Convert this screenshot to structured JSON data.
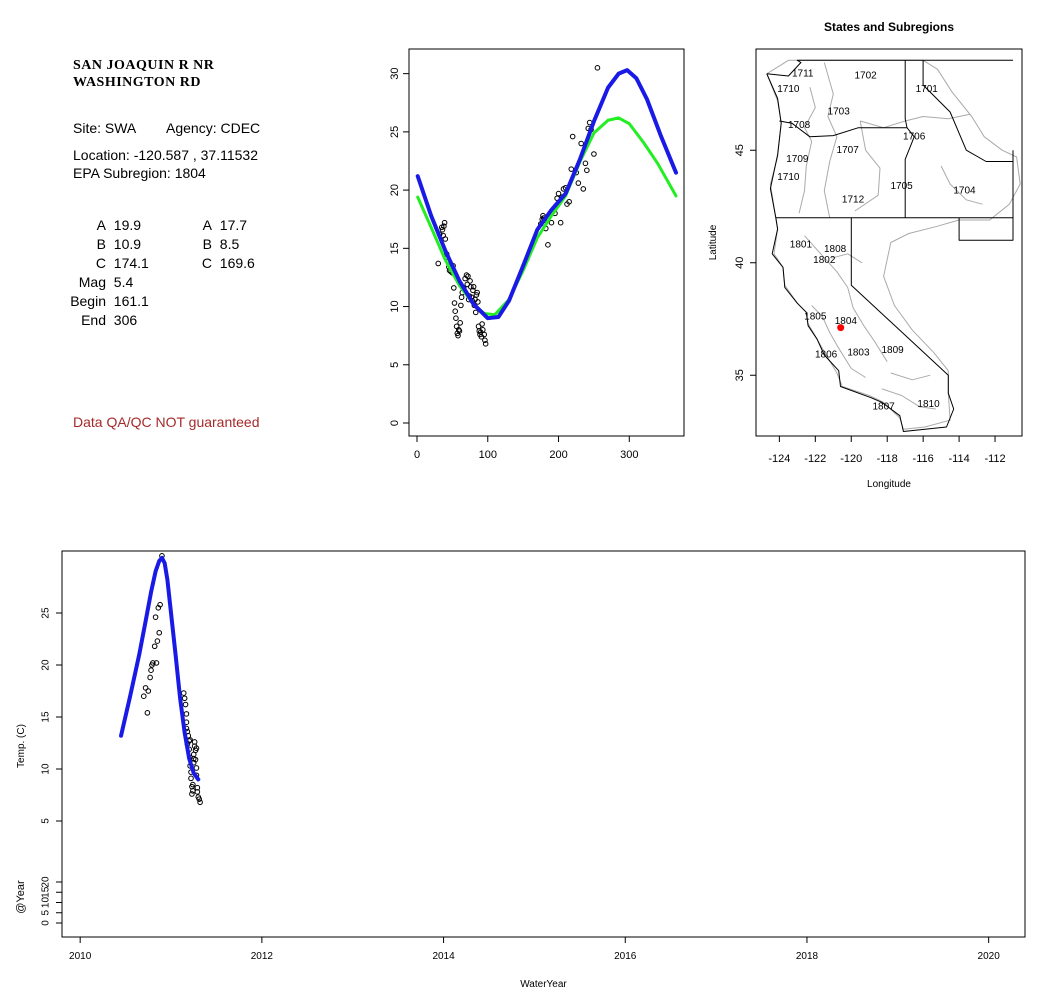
{
  "station": {
    "name_line1": "SAN JOAQUIN R NR",
    "name_line2": "WASHINGTON RD",
    "site_label": "Site: SWA",
    "agency_label": "Agency: CDEC",
    "location_label": "Location: -120.587 , 37.11532",
    "subregion_label": "EPA Subregion: 1804"
  },
  "params_left": [
    {
      "label": "A",
      "value": "19.9"
    },
    {
      "label": "B",
      "value": "10.9"
    },
    {
      "label": "C",
      "value": "174.1"
    },
    {
      "label": "Mag",
      "value": "5.4"
    },
    {
      "label": "Begin",
      "value": "161.1"
    },
    {
      "label": "End",
      "value": "306"
    }
  ],
  "params_right": [
    {
      "label": "A",
      "value": "17.7"
    },
    {
      "label": "B",
      "value": "8.5"
    },
    {
      "label": "C",
      "value": "169.6"
    }
  ],
  "qa_note": "Data QA/QC NOT guaranteed",
  "colors": {
    "green": "#22ee22",
    "blue": "#1a1ae6",
    "point": "#000000",
    "qa": "#a52a2a",
    "site_marker": "#ff0000",
    "map_boundary": "#aaaaaa"
  },
  "chart_data": [
    {
      "id": "seasonal",
      "type": "scatter",
      "title": "",
      "xlabel": "",
      "ylabel": "",
      "xlim": [
        0,
        366
      ],
      "ylim": [
        0,
        31
      ],
      "xticks": [
        0,
        100,
        200,
        300
      ],
      "yticks": [
        0,
        5,
        10,
        15,
        20,
        25,
        30
      ],
      "points": [
        [
          30,
          13.7
        ],
        [
          32,
          16.2
        ],
        [
          35,
          16.8
        ],
        [
          36,
          16.6
        ],
        [
          37,
          16.1
        ],
        [
          38,
          16.9
        ],
        [
          39,
          17.2
        ],
        [
          40,
          15.8
        ],
        [
          42,
          14.5
        ],
        [
          44,
          13.9
        ],
        [
          45,
          13.4
        ],
        [
          46,
          13.1
        ],
        [
          47,
          13.6
        ],
        [
          48,
          13.0
        ],
        [
          50,
          12.9
        ],
        [
          51,
          13.5
        ],
        [
          52,
          11.6
        ],
        [
          53,
          10.3
        ],
        [
          54,
          9.6
        ],
        [
          55,
          9.0
        ],
        [
          56,
          8.3
        ],
        [
          57,
          7.7
        ],
        [
          58,
          7.5
        ],
        [
          59,
          8.0
        ],
        [
          60,
          7.9
        ],
        [
          61,
          8.6
        ],
        [
          62,
          10.1
        ],
        [
          63,
          10.8
        ],
        [
          64,
          11.2
        ],
        [
          66,
          11.6
        ],
        [
          68,
          12.4
        ],
        [
          70,
          12.7
        ],
        [
          71,
          11.9
        ],
        [
          72,
          12.6
        ],
        [
          73,
          10.6
        ],
        [
          74,
          10.9
        ],
        [
          75,
          12.2
        ],
        [
          76,
          11.7
        ],
        [
          77,
          10.8
        ],
        [
          78,
          10.5
        ],
        [
          79,
          11.4
        ],
        [
          80,
          11.7
        ],
        [
          81,
          10.1
        ],
        [
          82,
          10.6
        ],
        [
          83,
          9.5
        ],
        [
          84,
          11.0
        ],
        [
          85,
          11.2
        ],
        [
          86,
          10.4
        ],
        [
          87,
          8.3
        ],
        [
          88,
          7.9
        ],
        [
          89,
          7.6
        ],
        [
          90,
          7.8
        ],
        [
          91,
          7.4
        ],
        [
          92,
          8.5
        ],
        [
          93,
          8.0
        ],
        [
          95,
          7.6
        ],
        [
          96,
          7.1
        ],
        [
          97,
          6.8
        ],
        [
          175,
          17.1
        ],
        [
          177,
          17.5
        ],
        [
          178,
          17.8
        ],
        [
          179,
          17.6
        ],
        [
          180,
          17.4
        ],
        [
          182,
          16.7
        ],
        [
          185,
          15.3
        ],
        [
          190,
          17.2
        ],
        [
          195,
          18.0
        ],
        [
          198,
          19.3
        ],
        [
          200,
          19.7
        ],
        [
          203,
          17.2
        ],
        [
          205,
          19.4
        ],
        [
          207,
          20.1
        ],
        [
          210,
          20.2
        ],
        [
          212,
          18.8
        ],
        [
          215,
          19.0
        ],
        [
          218,
          21.8
        ],
        [
          220,
          24.6
        ],
        [
          225,
          21.5
        ],
        [
          228,
          20.6
        ],
        [
          232,
          24.0
        ],
        [
          235,
          20.1
        ],
        [
          238,
          22.3
        ],
        [
          240,
          21.7
        ],
        [
          242,
          25.3
        ],
        [
          244,
          25.8
        ],
        [
          246,
          25.2
        ],
        [
          250,
          23.1
        ],
        [
          255,
          30.5
        ]
      ],
      "series": [
        {
          "name": "",
          "color": "#22ee22",
          "x": [
            1,
            20,
            40,
            60,
            80,
            95,
            110,
            130,
            150,
            170,
            190,
            210,
            230,
            250,
            270,
            285,
            300,
            320,
            340,
            366
          ],
          "y": [
            19.4,
            16.8,
            14.0,
            11.8,
            10.2,
            9.4,
            9.3,
            10.6,
            13.1,
            15.9,
            17.8,
            19.5,
            22.4,
            24.9,
            26.0,
            26.2,
            25.7,
            24.1,
            22.3,
            19.5
          ]
        },
        {
          "name": "",
          "color": "#1a1ae6",
          "x": [
            1,
            20,
            40,
            60,
            80,
            100,
            115,
            130,
            150,
            170,
            190,
            210,
            230,
            250,
            270,
            285,
            297,
            310,
            325,
            345,
            366
          ],
          "y": [
            21.2,
            17.8,
            14.8,
            12.2,
            10.2,
            9.0,
            9.1,
            10.5,
            13.5,
            16.6,
            18.3,
            19.7,
            22.6,
            25.9,
            28.8,
            30.0,
            30.3,
            29.6,
            27.8,
            24.6,
            21.5
          ]
        }
      ]
    },
    {
      "id": "map",
      "type": "map",
      "title": "States and Subregions",
      "xlabel": "Longitude",
      "ylabel": "Latitude",
      "xlim": [
        -125.3,
        -110.5
      ],
      "ylim": [
        32.3,
        49.5
      ],
      "xticks": [
        -124,
        -122,
        -120,
        -118,
        -116,
        -114,
        -112
      ],
      "yticks": [
        35,
        40,
        45
      ],
      "site": {
        "lon": -120.587,
        "lat": 37.11532
      },
      "region_labels": [
        {
          "text": "1711",
          "lon": -122.7,
          "lat": 48.4
        },
        {
          "text": "1702",
          "lon": -119.2,
          "lat": 48.3
        },
        {
          "text": "1701",
          "lon": -115.8,
          "lat": 47.7
        },
        {
          "text": "1710",
          "lon": -123.5,
          "lat": 47.7
        },
        {
          "text": "1703",
          "lon": -120.7,
          "lat": 46.7
        },
        {
          "text": "1708",
          "lon": -122.9,
          "lat": 46.1
        },
        {
          "text": "1706",
          "lon": -116.5,
          "lat": 45.6
        },
        {
          "text": "1707",
          "lon": -120.2,
          "lat": 45.0
        },
        {
          "text": "1709",
          "lon": -123.0,
          "lat": 44.6
        },
        {
          "text": "1710",
          "lon": -123.5,
          "lat": 43.8
        },
        {
          "text": "1705",
          "lon": -117.2,
          "lat": 43.4
        },
        {
          "text": "1704",
          "lon": -113.7,
          "lat": 43.2
        },
        {
          "text": "1712",
          "lon": -119.9,
          "lat": 42.8
        },
        {
          "text": "1801",
          "lon": -122.8,
          "lat": 40.8
        },
        {
          "text": "1808",
          "lon": -120.9,
          "lat": 40.6
        },
        {
          "text": "1802",
          "lon": -121.5,
          "lat": 40.1
        },
        {
          "text": "1805",
          "lon": -122.0,
          "lat": 37.6
        },
        {
          "text": "1804",
          "lon": -120.3,
          "lat": 37.4
        },
        {
          "text": "1806",
          "lon": -121.4,
          "lat": 35.9
        },
        {
          "text": "1803",
          "lon": -119.6,
          "lat": 36.0
        },
        {
          "text": "1809",
          "lon": -117.7,
          "lat": 36.1
        },
        {
          "text": "1810",
          "lon": -115.7,
          "lat": 33.7
        },
        {
          "text": "1807",
          "lon": -118.2,
          "lat": 33.6
        }
      ]
    },
    {
      "id": "timeseries",
      "type": "scatter",
      "title": "",
      "xlabel": "WaterYear",
      "ylabel": "Temp. (C)",
      "ylabel2": "@Year",
      "xlim": [
        2009.8,
        2020.4
      ],
      "ylim": [
        5,
        30
      ],
      "xticks": [
        2010,
        2012,
        2014,
        2016,
        2018,
        2020
      ],
      "yticks": [
        5,
        10,
        15,
        20,
        25
      ],
      "yticks2": [
        0,
        5,
        10,
        15,
        20
      ],
      "points": [
        [
          2010.7,
          17.0
        ],
        [
          2010.72,
          17.8
        ],
        [
          2010.74,
          15.4
        ],
        [
          2010.75,
          17.5
        ],
        [
          2010.77,
          18.8
        ],
        [
          2010.78,
          19.5
        ],
        [
          2010.79,
          20.0
        ],
        [
          2010.8,
          20.2
        ],
        [
          2010.82,
          21.8
        ],
        [
          2010.83,
          24.6
        ],
        [
          2010.84,
          20.2
        ],
        [
          2010.85,
          22.3
        ],
        [
          2010.86,
          25.5
        ],
        [
          2010.87,
          23.1
        ],
        [
          2010.88,
          25.8
        ],
        [
          2010.9,
          30.5
        ],
        [
          2011.14,
          17.3
        ],
        [
          2011.15,
          16.8
        ],
        [
          2011.16,
          16.2
        ],
        [
          2011.17,
          15.3
        ],
        [
          2011.17,
          14.5
        ],
        [
          2011.18,
          13.6
        ],
        [
          2011.19,
          13.2
        ],
        [
          2011.2,
          12.7
        ],
        [
          2011.2,
          11.9
        ],
        [
          2011.21,
          11.1
        ],
        [
          2011.21,
          10.3
        ],
        [
          2011.22,
          9.7
        ],
        [
          2011.22,
          9.1
        ],
        [
          2011.23,
          8.3
        ],
        [
          2011.23,
          7.6
        ],
        [
          2011.24,
          7.9
        ],
        [
          2011.24,
          8.5
        ],
        [
          2011.25,
          10.6
        ],
        [
          2011.25,
          11.4
        ],
        [
          2011.26,
          12.2
        ],
        [
          2011.26,
          12.6
        ],
        [
          2011.27,
          11.8
        ],
        [
          2011.27,
          10.9
        ],
        [
          2011.28,
          10.1
        ],
        [
          2011.28,
          9.4
        ],
        [
          2011.29,
          8.2
        ],
        [
          2011.29,
          7.8
        ],
        [
          2011.3,
          7.3
        ],
        [
          2011.31,
          7.1
        ],
        [
          2011.32,
          6.8
        ],
        [
          2011.17,
          13.9
        ],
        [
          2011.18,
          12.4
        ],
        [
          2011.21,
          12.8
        ],
        [
          2011.25,
          11.0
        ],
        [
          2011.28,
          12.0
        ]
      ],
      "series": [
        {
          "name": "",
          "color": "#1a1ae6",
          "x": [
            2010.45,
            2010.55,
            2010.65,
            2010.72,
            2010.78,
            2010.83,
            2010.87,
            2010.9,
            2010.93,
            2010.96,
            2011.0,
            2011.05,
            2011.1,
            2011.15,
            2011.2,
            2011.25,
            2011.3
          ],
          "y": [
            13.2,
            17.0,
            21.0,
            24.2,
            27.0,
            29.0,
            30.0,
            30.3,
            29.8,
            28.2,
            25.0,
            21.0,
            16.8,
            13.5,
            11.0,
            9.6,
            9.0
          ]
        }
      ]
    }
  ]
}
